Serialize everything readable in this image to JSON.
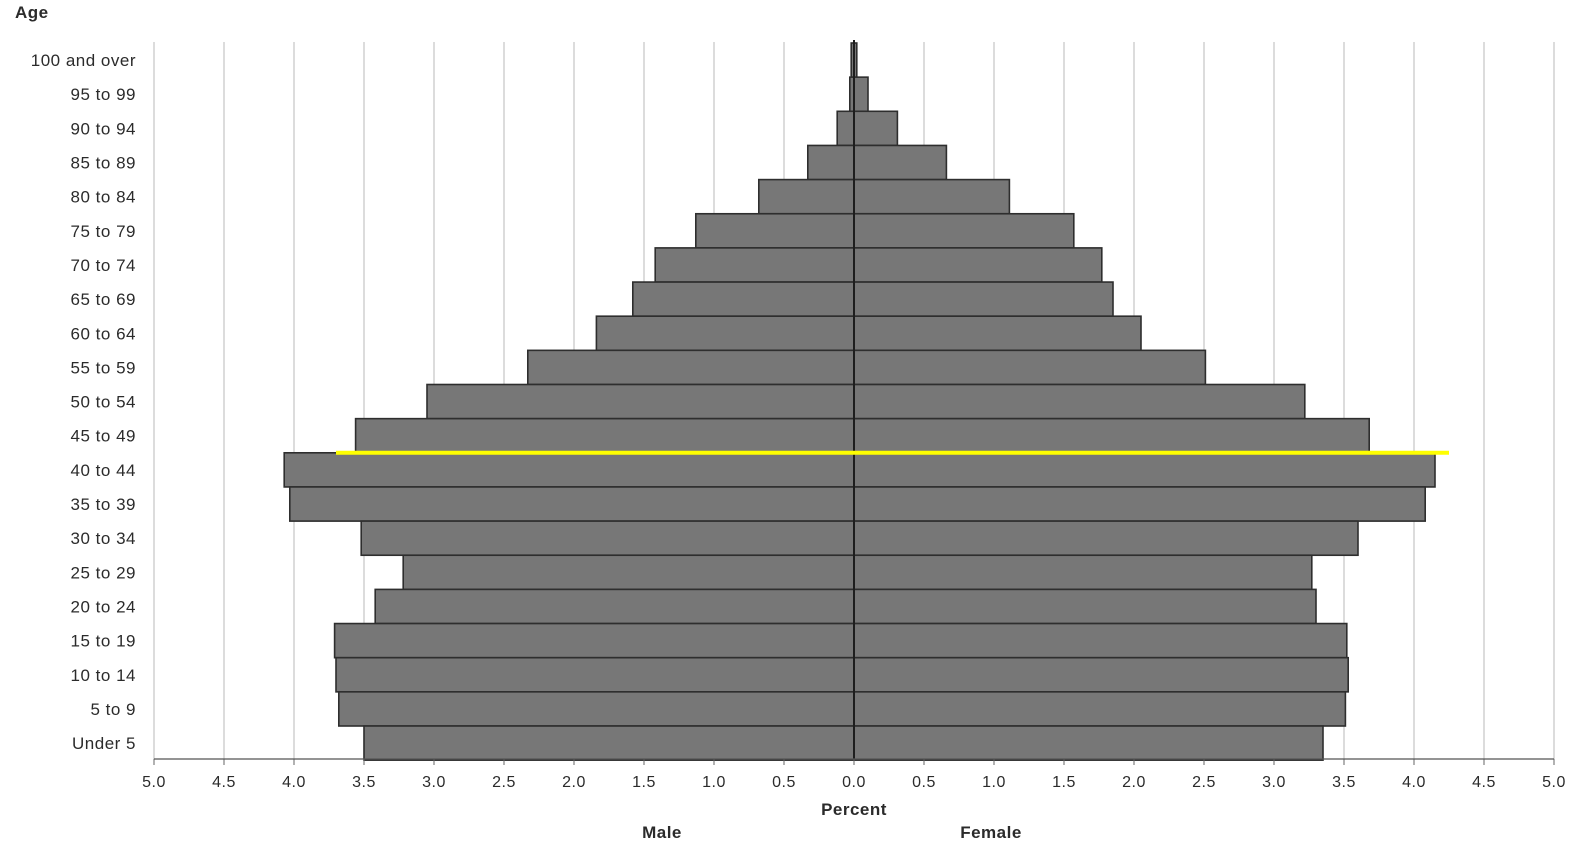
{
  "chart_data": {
    "type": "bar",
    "orientation": "horizontal",
    "subtype": "population-pyramid",
    "y_axis_title": "Age",
    "xlabel": "Percent",
    "categories": [
      "100 and over",
      "95 to 99",
      "90 to 94",
      "85 to 89",
      "80 to 84",
      "75 to 79",
      "70 to 74",
      "65 to 69",
      "60 to 64",
      "55 to 59",
      "50 to 54",
      "45 to 49",
      "40 to 44",
      "35 to 39",
      "30 to 34",
      "25 to 29",
      "20 to 24",
      "15 to 19",
      "10 to 14",
      "5 to 9",
      "Under 5"
    ],
    "series": [
      {
        "name": "Male",
        "side": "left",
        "values": [
          0.02,
          0.03,
          0.12,
          0.33,
          0.68,
          1.13,
          1.42,
          1.58,
          1.84,
          2.33,
          3.05,
          3.56,
          4.07,
          4.03,
          3.52,
          3.22,
          3.42,
          3.71,
          3.7,
          3.68,
          3.5
        ]
      },
      {
        "name": "Female",
        "side": "right",
        "values": [
          0.02,
          0.1,
          0.31,
          0.66,
          1.11,
          1.57,
          1.77,
          1.85,
          2.05,
          2.51,
          3.22,
          3.68,
          4.15,
          4.08,
          3.6,
          3.27,
          3.3,
          3.52,
          3.53,
          3.51,
          3.35
        ]
      }
    ],
    "xlim": [
      -5.0,
      5.0
    ],
    "x_ticks": [
      "5.0",
      "4.5",
      "4.0",
      "3.5",
      "3.0",
      "2.5",
      "2.0",
      "1.5",
      "1.0",
      "0.5",
      "0.0",
      "0.5",
      "1.0",
      "1.5",
      "2.0",
      "2.5",
      "3.0",
      "3.5",
      "4.0",
      "4.5",
      "5.0"
    ],
    "grid": "vertical",
    "bar_color": "#777777",
    "highlight_line": {
      "color": "#ffff00",
      "between_categories": [
        "45 to 49",
        "40 to 44"
      ],
      "x_range": [
        -3.7,
        4.25
      ]
    }
  }
}
